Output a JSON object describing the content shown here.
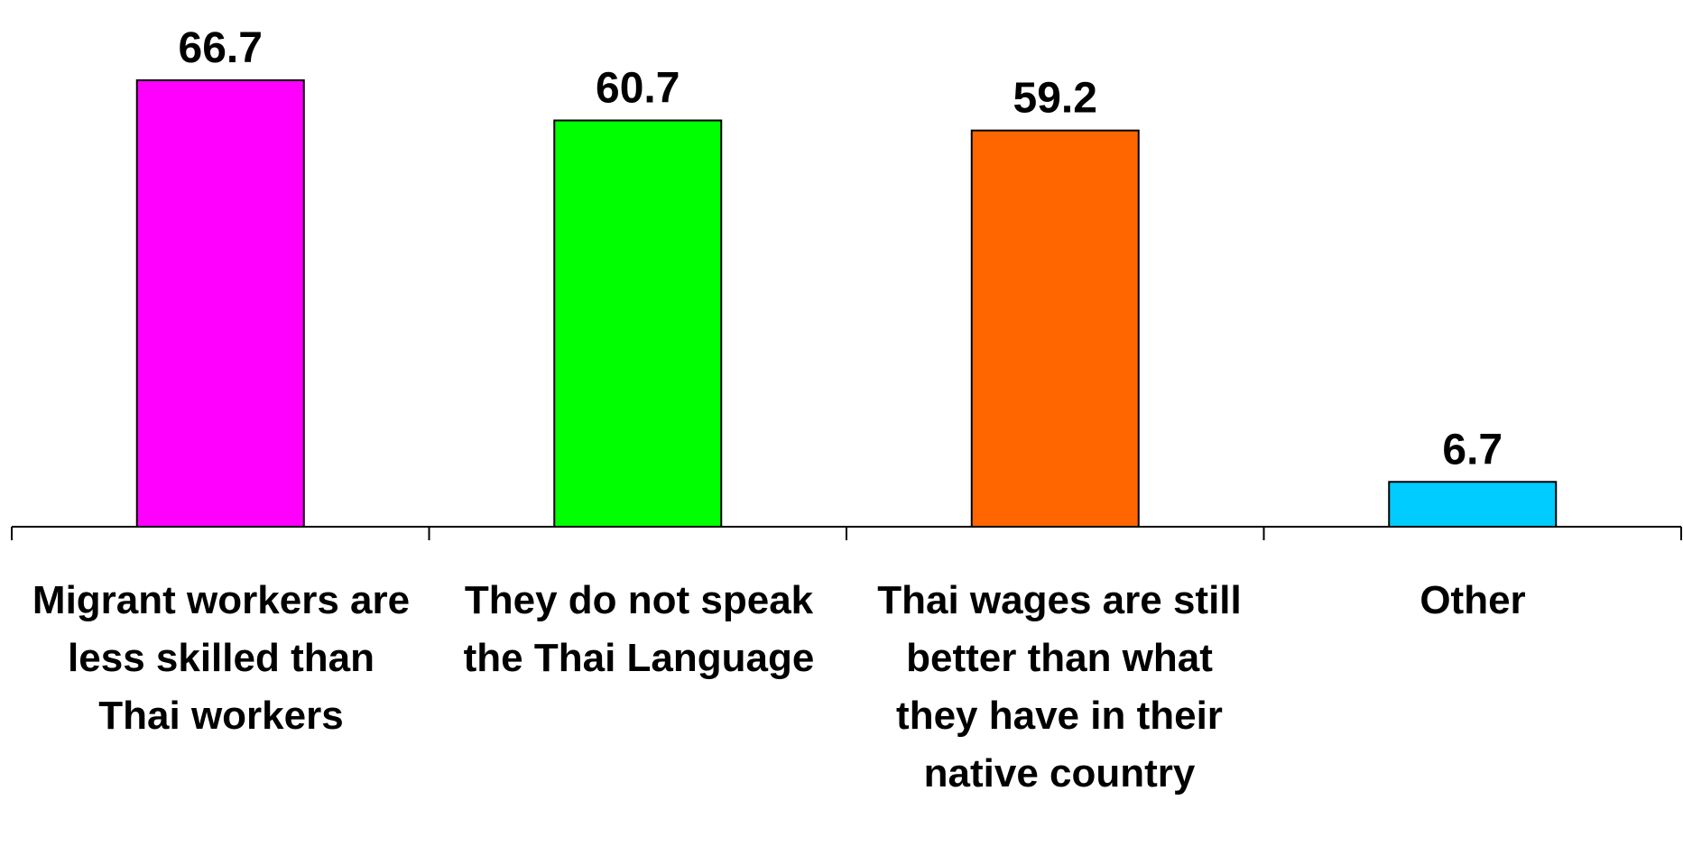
{
  "chart_data": {
    "type": "bar",
    "categories": [
      "Migrant workers are less skilled than Thai workers",
      "They do not speak the Thai Language",
      "Thai wages are still better than what they have in their native country",
      "Other"
    ],
    "values": [
      66.7,
      60.7,
      59.2,
      6.7
    ],
    "value_labels": [
      "66.7",
      "60.7",
      "59.2",
      "6.7"
    ],
    "colors": [
      "#FF00FF",
      "#00FF00",
      "#FF6600",
      "#00CCFF"
    ],
    "title": "",
    "xlabel": "",
    "ylabel": "",
    "ylim": [
      0,
      66.7
    ],
    "grid": false,
    "legend": "none"
  }
}
